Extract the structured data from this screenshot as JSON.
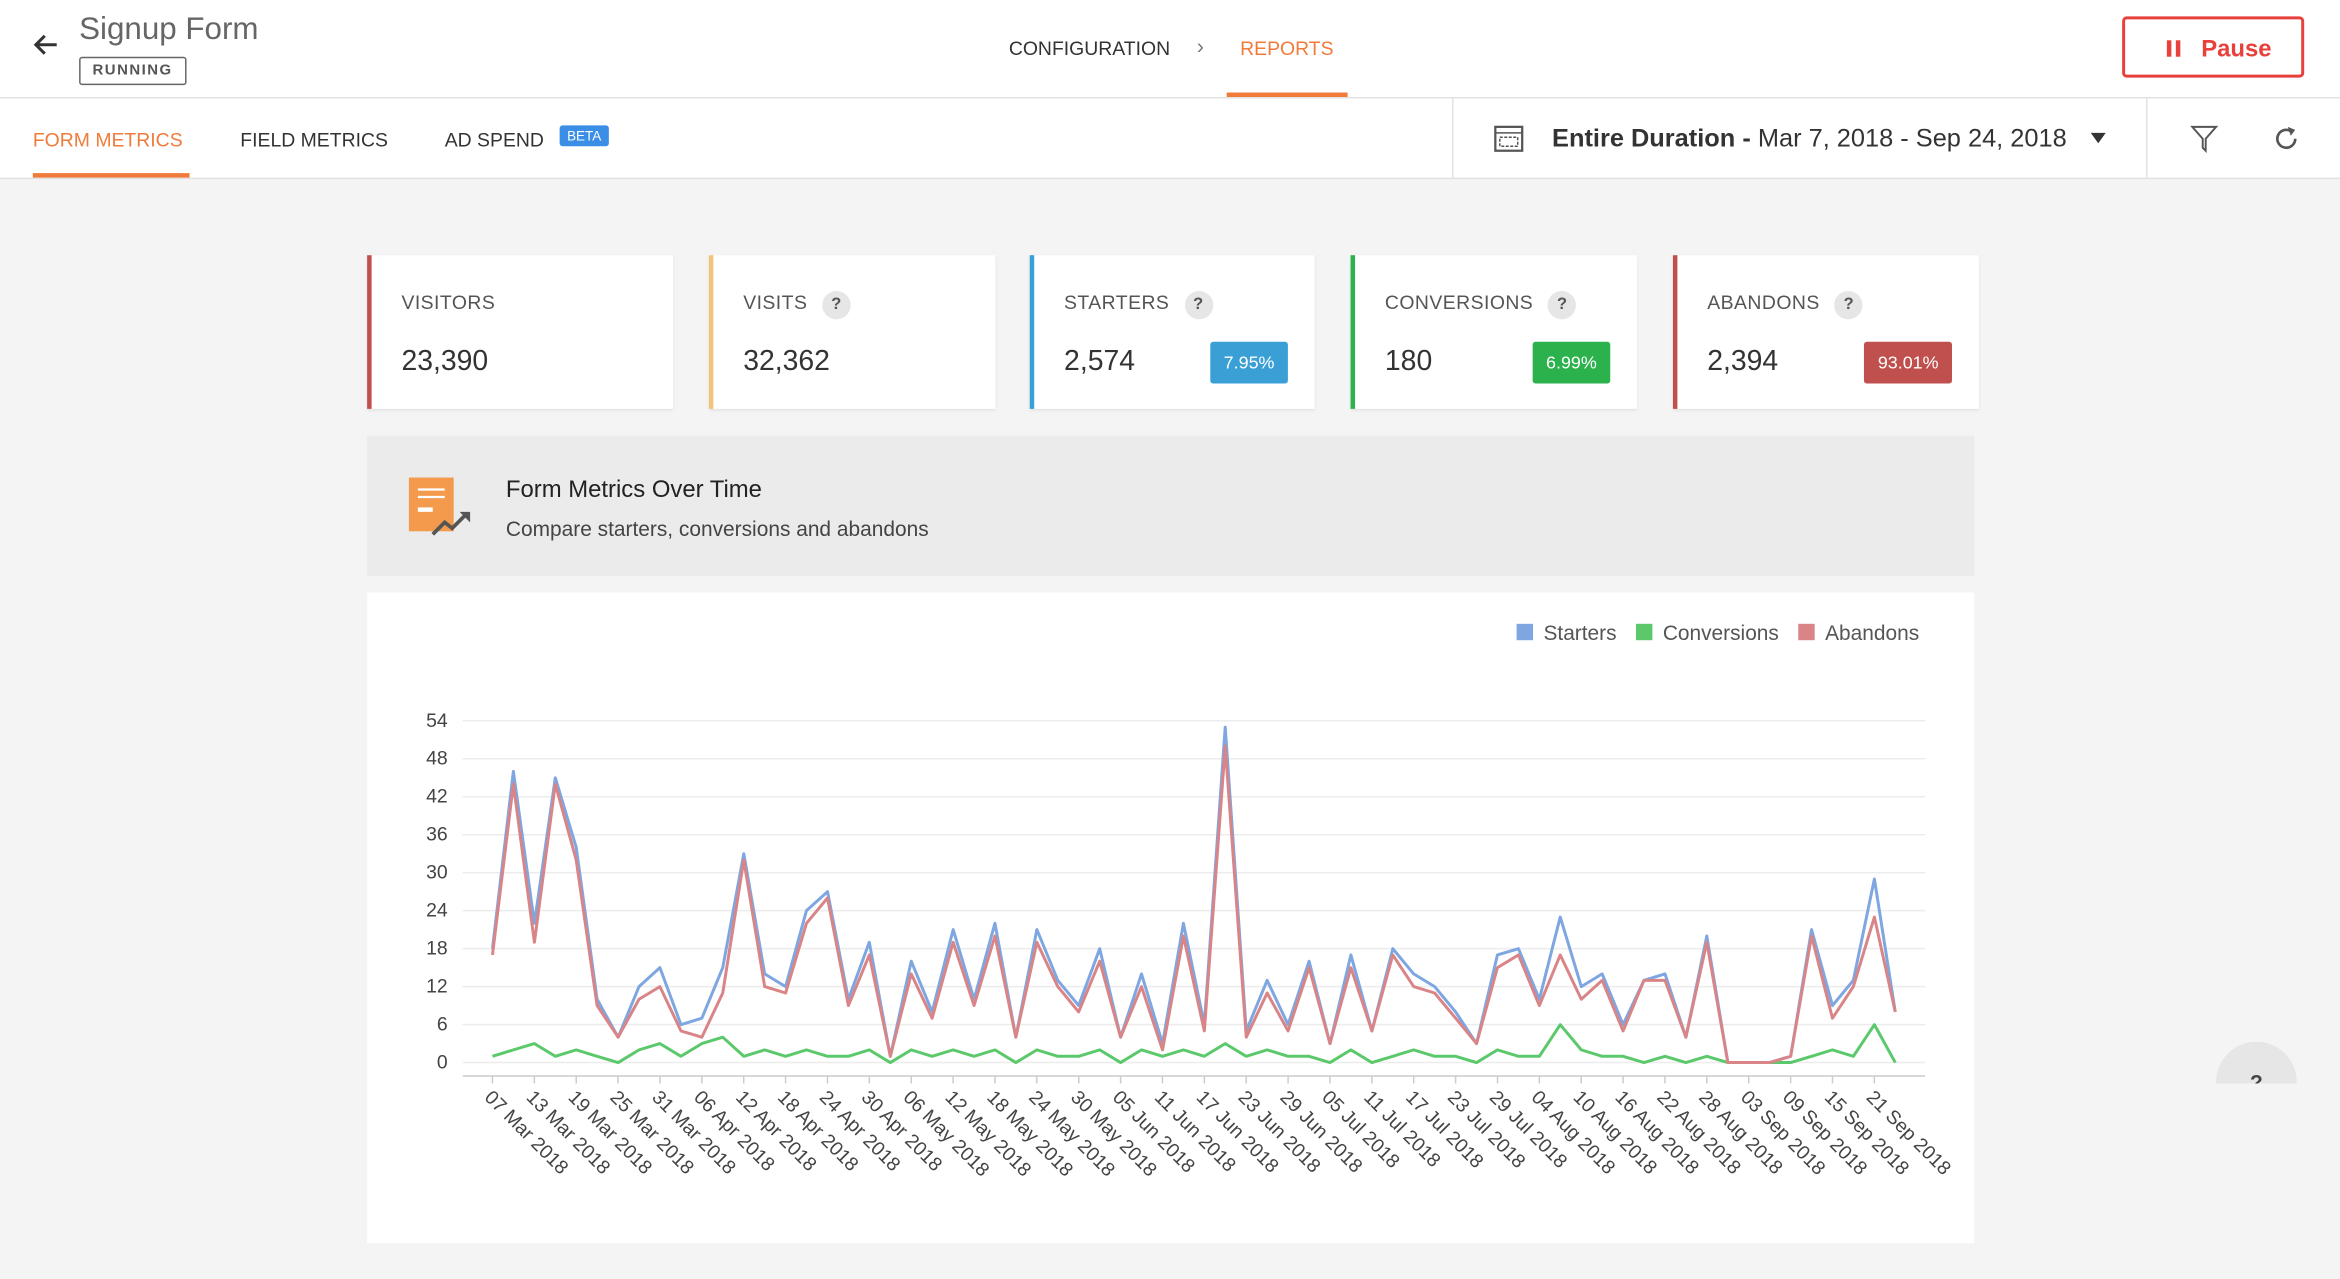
{
  "header": {
    "title": "Signup Form",
    "status": "RUNNING",
    "nav": [
      "CONFIGURATION",
      "REPORTS"
    ],
    "pause": "Pause"
  },
  "tabs": {
    "items": [
      "FORM METRICS",
      "FIELD METRICS",
      "AD SPEND"
    ],
    "beta": "BETA",
    "date_label": "Entire Duration -",
    "date_range": "Mar 7, 2018 - Sep 24, 2018"
  },
  "metrics": [
    {
      "label": "VISITORS",
      "value": "23,390",
      "color": "#c0504d"
    },
    {
      "label": "VISITS",
      "value": "32,362",
      "color": "#f2c37a",
      "help": "?"
    },
    {
      "label": "STARTERS",
      "value": "2,574",
      "color": "#3a9fd5",
      "help": "?",
      "badge": "7.95%"
    },
    {
      "label": "CONVERSIONS",
      "value": "180",
      "color": "#2bb24c",
      "help": "?",
      "badge": "6.99%"
    },
    {
      "label": "ABANDONS",
      "value": "2,394",
      "color": "#c0504d",
      "help": "?",
      "badge": "93.01%"
    }
  ],
  "panel": {
    "title": "Form Metrics Over Time",
    "subtitle": "Compare starters, conversions and abandons"
  },
  "help_bubble": "?",
  "chart_data": {
    "type": "line",
    "legend": "top-right",
    "grid": true,
    "ylim": [
      0,
      54
    ],
    "yticks": [
      0,
      6,
      12,
      18,
      24,
      30,
      36,
      42,
      48,
      54
    ],
    "categories": [
      "07 Mar 2018",
      null,
      "13 Mar 2018",
      null,
      "19 Mar 2018",
      null,
      "25 Mar 2018",
      null,
      "31 Mar 2018",
      null,
      "06 Apr 2018",
      null,
      "12 Apr 2018",
      null,
      "18 Apr 2018",
      null,
      "24 Apr 2018",
      null,
      "30 Apr 2018",
      null,
      "06 May 2018",
      null,
      "12 May 2018",
      null,
      "18 May 2018",
      null,
      "24 May 2018",
      null,
      "30 May 2018",
      null,
      "05 Jun 2018",
      null,
      "11 Jun 2018",
      null,
      "17 Jun 2018",
      null,
      "23 Jun 2018",
      null,
      "29 Jun 2018",
      null,
      "05 Jul 2018",
      null,
      "11 Jul 2018",
      null,
      "17 Jul 2018",
      null,
      "23 Jul 2018",
      null,
      "29 Jul 2018",
      null,
      "04 Aug 2018",
      null,
      "10 Aug 2018",
      null,
      "16 Aug 2018",
      null,
      "22 Aug 2018",
      null,
      "28 Aug 2018",
      null,
      "03 Sep 2018",
      null,
      "09 Sep 2018",
      null,
      "15 Sep 2018",
      null,
      "21 Sep 2018",
      null
    ],
    "series": [
      {
        "name": "Starters",
        "color": "#7ea6e0",
        "values": [
          18,
          46,
          22,
          45,
          34,
          10,
          4,
          12,
          15,
          6,
          7,
          15,
          33,
          14,
          12,
          24,
          27,
          10,
          19,
          1,
          16,
          8,
          21,
          10,
          22,
          4,
          21,
          13,
          9,
          18,
          4,
          14,
          3,
          22,
          6,
          53,
          5,
          13,
          6,
          16,
          3,
          17,
          5,
          18,
          14,
          12,
          8,
          3,
          17,
          18,
          10,
          23,
          12,
          14,
          6,
          13,
          14,
          4,
          20,
          0,
          0,
          0,
          1,
          21,
          9,
          13,
          29,
          8
        ]
      },
      {
        "name": "Conversions",
        "color": "#5bc96b",
        "values": [
          1,
          2,
          3,
          1,
          2,
          1,
          0,
          2,
          3,
          1,
          3,
          4,
          1,
          2,
          1,
          2,
          1,
          1,
          2,
          0,
          2,
          1,
          2,
          1,
          2,
          0,
          2,
          1,
          1,
          2,
          0,
          2,
          1,
          2,
          1,
          3,
          1,
          2,
          1,
          1,
          0,
          2,
          0,
          1,
          2,
          1,
          1,
          0,
          2,
          1,
          1,
          6,
          2,
          1,
          1,
          0,
          1,
          0,
          1,
          0,
          0,
          0,
          0,
          1,
          2,
          1,
          6,
          0
        ]
      },
      {
        "name": "Abandons",
        "color": "#d98587",
        "values": [
          17,
          44,
          19,
          44,
          32,
          9,
          4,
          10,
          12,
          5,
          4,
          11,
          32,
          12,
          11,
          22,
          26,
          9,
          17,
          1,
          14,
          7,
          19,
          9,
          20,
          4,
          19,
          12,
          8,
          16,
          4,
          12,
          2,
          20,
          5,
          50,
          4,
          11,
          5,
          15,
          3,
          15,
          5,
          17,
          12,
          11,
          7,
          3,
          15,
          17,
          9,
          17,
          10,
          13,
          5,
          13,
          13,
          4,
          19,
          0,
          0,
          0,
          1,
          20,
          7,
          12,
          23,
          8
        ]
      }
    ]
  }
}
